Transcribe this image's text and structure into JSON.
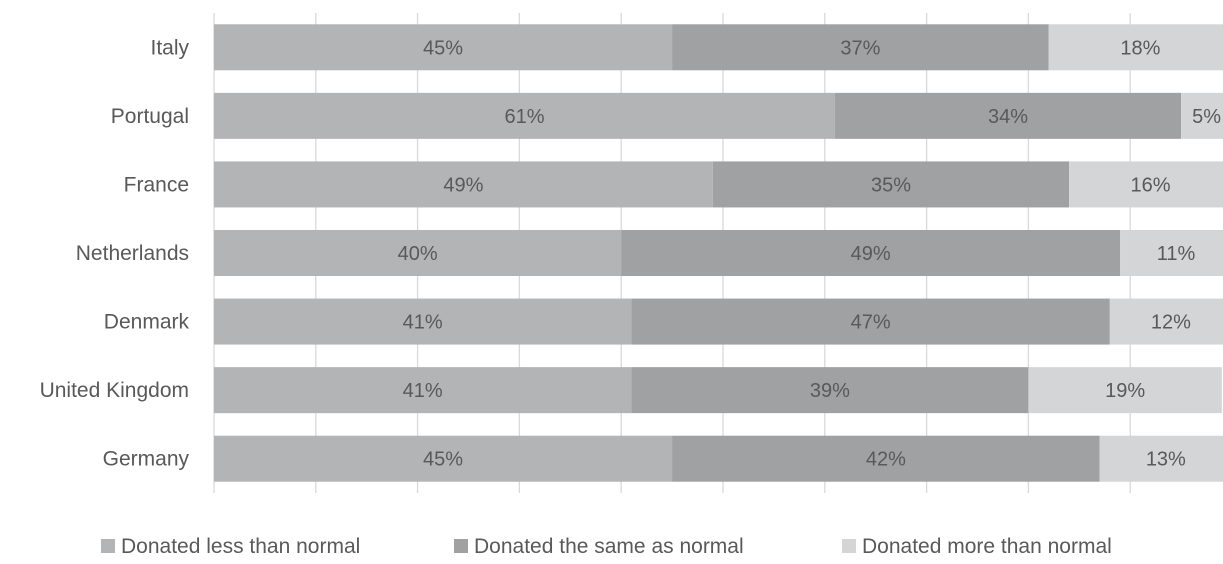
{
  "chart_data": {
    "type": "bar",
    "orientation": "horizontal",
    "stacked": true,
    "percent_stacked": true,
    "categories": [
      "Italy",
      "Portugal",
      "France",
      "Netherlands",
      "Denmark",
      "United Kingdom",
      "Germany"
    ],
    "series": [
      {
        "name": "Donated less than normal",
        "values": [
          45,
          61,
          49,
          40,
          41,
          41,
          45
        ],
        "labels": [
          "45%",
          "61%",
          "49%",
          "40%",
          "41%",
          "41%",
          "45%"
        ],
        "color": "#b3b4b6"
      },
      {
        "name": "Donated the same as normal",
        "values": [
          37,
          34,
          35,
          49,
          47,
          39,
          42
        ],
        "labels": [
          "37%",
          "34%",
          "35%",
          "49%",
          "47%",
          "39%",
          "42%"
        ],
        "color": "#a0a1a3"
      },
      {
        "name": "Donated more than normal",
        "values": [
          18,
          5,
          16,
          11,
          12,
          19,
          13
        ],
        "labels": [
          "18%",
          "5%",
          "16%",
          "11%",
          "12%",
          "19%",
          "13%"
        ],
        "color": "#d4d5d7"
      }
    ],
    "xlim": [
      0,
      100
    ],
    "grid": true,
    "legend_position": "bottom",
    "colors": {
      "text": "#595959",
      "grid": "#d9d9d9"
    }
  }
}
